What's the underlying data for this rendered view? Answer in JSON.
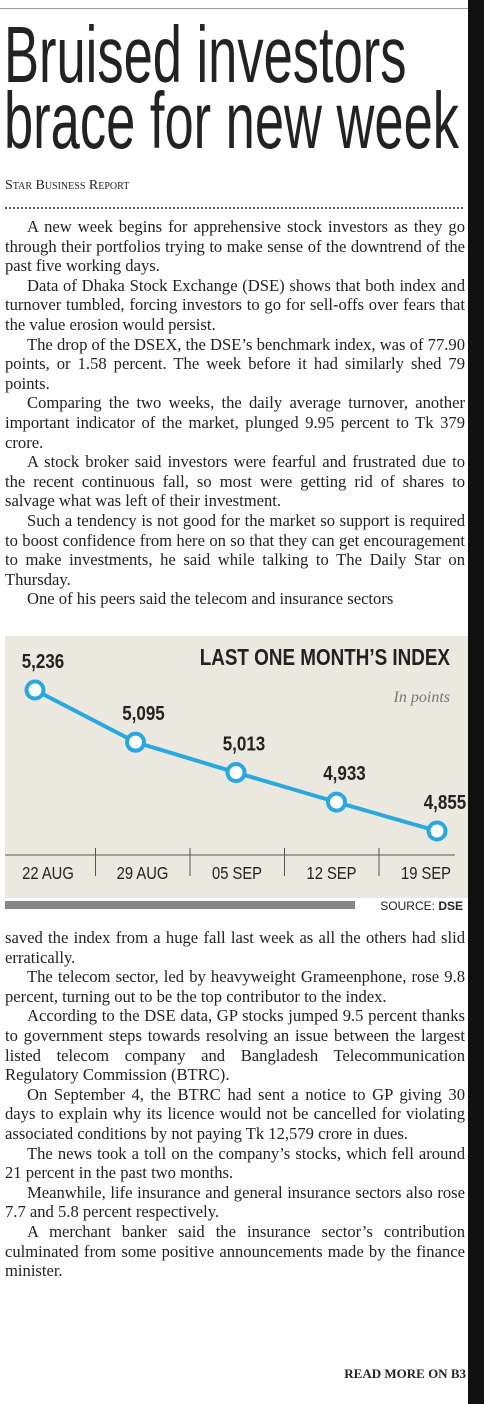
{
  "header": {
    "title_lines": [
      "Bruised investors",
      "brace for new week"
    ],
    "byline": "Star Business Report"
  },
  "paragraphs_before": [
    "A new week begins for apprehensive stock investors as they go through their portfolios trying to make sense of the downtrend of the past five working days.",
    "Data of Dhaka Stock Exchange (DSE) shows that both index and turnover tumbled, forcing investors to go for sell-offs over fears that the value erosion would persist.",
    "The drop of the DSEX, the DSE’s benchmark index, was of 77.90 points, or 1.58 percent. The week before it had similarly shed 79 points.",
    "Comparing the two weeks, the daily average turnover, another important indicator of the market, plunged 9.95 percent to Tk 379 crore.",
    "A stock broker said investors were fearful and frustrated due to the recent continuous fall, so most were getting rid of shares to salvage what was left of their investment.",
    "Such a tendency is not good for the market so support is required to boost confidence from here on so that they can get encouragement to make investments, he said while talking to The Daily Star on Thursday.",
    "One of his peers said the telecom and insurance sectors"
  ],
  "chart_data": {
    "type": "line",
    "title": "LAST ONE MONTH’S INDEX",
    "subtitle": "In points",
    "categories": [
      "22 AUG",
      "29 AUG",
      "05 SEP",
      "12 SEP",
      "19 SEP"
    ],
    "values": [
      5236,
      5095,
      5013,
      4933,
      4855
    ],
    "value_labels": [
      "5,236",
      "5,095",
      "5,013",
      "4,933",
      "4,855"
    ],
    "color": "#29a8e0",
    "source": {
      "label": "SOURCE:",
      "name": "DSE"
    }
  },
  "paragraphs_after": [
    "saved the index from a huge fall last week as all the others had slid erratically.",
    "The telecom sector, led by heavyweight Grameenphone, rose 9.8 percent, turning out to be the top contributor to the index.",
    "According to the DSE data, GP stocks jumped 9.5 percent thanks to government steps towards resolving an issue between the largest listed telecom company and Bangladesh Telecommunication Regulatory Commission (BTRC).",
    "On September 4, the BTRC had sent a notice to GP giving 30 days to explain why its licence would not be cancelled for violating associated conditions by not paying Tk 12,579 crore in dues.",
    "The news took a toll on the company’s stocks, which fell around 21 percent in the past two months.",
    "Meanwhile, life insurance and general insurance sectors also rose 7.7 and 5.8 percent respectively.",
    "A merchant banker said the insurance sector’s contribution culminated from some positive announcements made by the finance minister."
  ],
  "footer": "READ MORE ON B3"
}
